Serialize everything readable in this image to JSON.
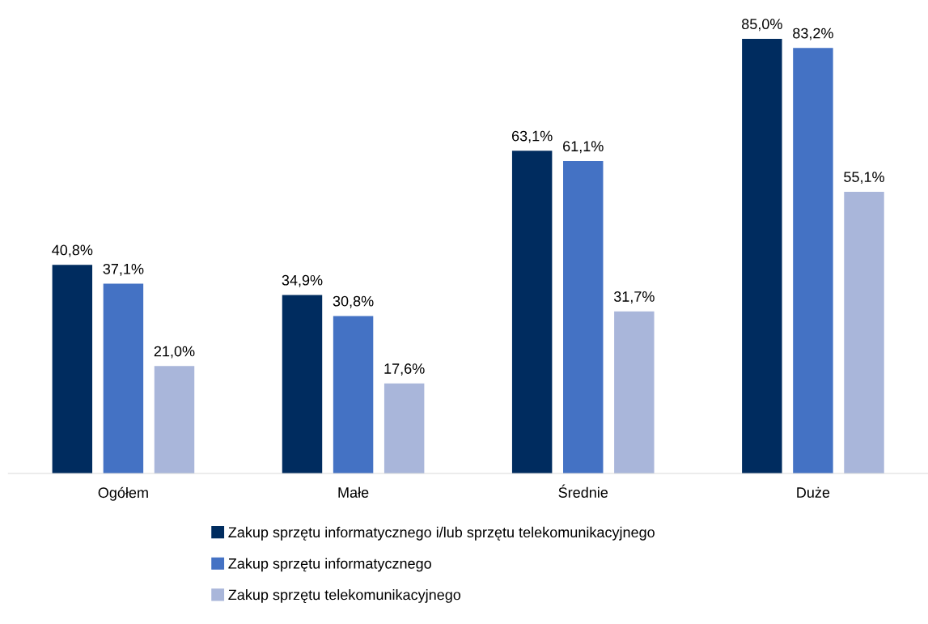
{
  "chart_data": {
    "type": "bar",
    "categories": [
      "Ogółem",
      "Małe",
      "Średnie",
      "Duże"
    ],
    "series": [
      {
        "name": "Zakup sprzętu informatycznego i/lub sprzętu telekomunikacyjnego",
        "color": "#002c5f",
        "values": [
          40.8,
          34.9,
          63.1,
          85.0
        ],
        "value_labels": [
          "40,8%",
          "34,9%",
          "63,1%",
          "85,0%"
        ]
      },
      {
        "name": "Zakup sprzętu informatycznego",
        "color": "#4472c4",
        "values": [
          37.1,
          30.8,
          61.1,
          83.2
        ],
        "value_labels": [
          "37,1%",
          "30,8%",
          "61,1%",
          "83,2%"
        ]
      },
      {
        "name": "Zakup sprzętu telekomunikacyjnego",
        "color": "#a9b6da",
        "values": [
          21.0,
          17.6,
          31.7,
          55.1
        ],
        "value_labels": [
          "21,0%",
          "17,6%",
          "31,7%",
          "55,1%"
        ]
      }
    ],
    "grid": false,
    "legend": "bottom"
  }
}
